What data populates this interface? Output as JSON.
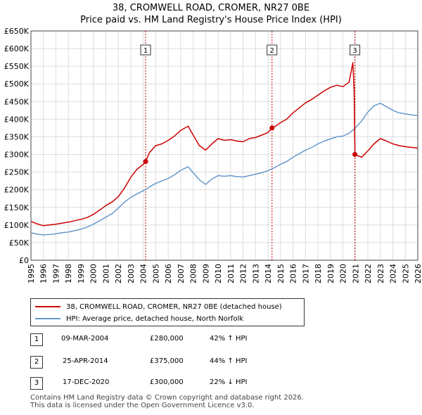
{
  "colors": {
    "property": "#cc0000",
    "hpi": "#6699cc",
    "grid": "#dddddd",
    "frame": "#444444",
    "vline": "#cc0000",
    "bg": "#ffffff"
  },
  "chart_data": {
    "type": "line",
    "title": "38, CROMWELL ROAD, CROMER, NR27 0BE",
    "subtitle": "Price paid vs. HM Land Registry's House Price Index (HPI)",
    "xlabel": "",
    "ylabel": "",
    "xlim": [
      1995,
      2026
    ],
    "ylim": [
      0,
      650000
    ],
    "x_ticks": [
      1995,
      1996,
      1997,
      1998,
      1999,
      2000,
      2001,
      2002,
      2003,
      2004,
      2005,
      2006,
      2007,
      2008,
      2009,
      2010,
      2011,
      2012,
      2013,
      2014,
      2015,
      2016,
      2017,
      2018,
      2019,
      2020,
      2021,
      2022,
      2023,
      2024,
      2025,
      2026
    ],
    "y_ticks": [
      0,
      50000,
      100000,
      150000,
      200000,
      250000,
      300000,
      350000,
      400000,
      450000,
      500000,
      550000,
      600000,
      650000
    ],
    "y_tick_labels": [
      "£0",
      "£50K",
      "£100K",
      "£150K",
      "£200K",
      "£250K",
      "£300K",
      "£350K",
      "£400K",
      "£450K",
      "£500K",
      "£550K",
      "£600K",
      "£650K"
    ],
    "grid": true,
    "series": [
      {
        "name": "38, CROMWELL ROAD, CROMER, NR27 0BE (detached house)",
        "color": "#cc0000",
        "points": [
          [
            1995.0,
            110000
          ],
          [
            1995.5,
            103000
          ],
          [
            1996.0,
            98000
          ],
          [
            1996.5,
            100000
          ],
          [
            1997.0,
            102000
          ],
          [
            1997.5,
            105000
          ],
          [
            1998.0,
            108000
          ],
          [
            1998.5,
            112000
          ],
          [
            1999.0,
            116000
          ],
          [
            1999.5,
            121000
          ],
          [
            2000.0,
            130000
          ],
          [
            2000.5,
            142000
          ],
          [
            2001.0,
            155000
          ],
          [
            2001.5,
            165000
          ],
          [
            2002.0,
            180000
          ],
          [
            2002.5,
            205000
          ],
          [
            2003.0,
            235000
          ],
          [
            2003.5,
            258000
          ],
          [
            2004.0,
            272000
          ],
          [
            2004.19,
            280000
          ],
          [
            2004.5,
            305000
          ],
          [
            2005.0,
            325000
          ],
          [
            2005.5,
            330000
          ],
          [
            2006.0,
            340000
          ],
          [
            2006.5,
            352000
          ],
          [
            2007.0,
            368000
          ],
          [
            2007.6,
            380000
          ],
          [
            2008.0,
            355000
          ],
          [
            2008.5,
            325000
          ],
          [
            2009.0,
            312000
          ],
          [
            2009.5,
            330000
          ],
          [
            2010.0,
            345000
          ],
          [
            2010.5,
            340000
          ],
          [
            2011.0,
            342000
          ],
          [
            2011.5,
            338000
          ],
          [
            2012.0,
            336000
          ],
          [
            2012.5,
            345000
          ],
          [
            2013.0,
            348000
          ],
          [
            2013.5,
            355000
          ],
          [
            2014.0,
            362000
          ],
          [
            2014.32,
            375000
          ],
          [
            2014.6,
            380000
          ],
          [
            2015.0,
            390000
          ],
          [
            2015.5,
            400000
          ],
          [
            2016.0,
            418000
          ],
          [
            2016.5,
            432000
          ],
          [
            2017.0,
            446000
          ],
          [
            2017.5,
            456000
          ],
          [
            2018.0,
            468000
          ],
          [
            2018.5,
            480000
          ],
          [
            2019.0,
            490000
          ],
          [
            2019.5,
            496000
          ],
          [
            2020.0,
            492000
          ],
          [
            2020.5,
            505000
          ],
          [
            2020.8,
            560000
          ],
          [
            2020.9,
            480000
          ],
          [
            2020.96,
            300000
          ],
          [
            2021.2,
            296000
          ],
          [
            2021.5,
            292000
          ],
          [
            2022.0,
            310000
          ],
          [
            2022.5,
            330000
          ],
          [
            2023.0,
            345000
          ],
          [
            2023.5,
            338000
          ],
          [
            2024.0,
            330000
          ],
          [
            2024.5,
            325000
          ],
          [
            2025.0,
            322000
          ],
          [
            2025.5,
            320000
          ],
          [
            2026.0,
            318000
          ]
        ]
      },
      {
        "name": "HPI: Average price, detached house, North Norfolk",
        "color": "#6699cc",
        "points": [
          [
            1995.0,
            78000
          ],
          [
            1995.5,
            74000
          ],
          [
            1996.0,
            72000
          ],
          [
            1996.5,
            73000
          ],
          [
            1997.0,
            75000
          ],
          [
            1997.5,
            78000
          ],
          [
            1998.0,
            80000
          ],
          [
            1998.5,
            84000
          ],
          [
            1999.0,
            88000
          ],
          [
            1999.5,
            94000
          ],
          [
            2000.0,
            102000
          ],
          [
            2000.5,
            112000
          ],
          [
            2001.0,
            122000
          ],
          [
            2001.5,
            132000
          ],
          [
            2002.0,
            148000
          ],
          [
            2002.5,
            165000
          ],
          [
            2003.0,
            178000
          ],
          [
            2003.5,
            188000
          ],
          [
            2004.0,
            197000
          ],
          [
            2004.5,
            208000
          ],
          [
            2005.0,
            218000
          ],
          [
            2005.5,
            225000
          ],
          [
            2006.0,
            232000
          ],
          [
            2006.5,
            242000
          ],
          [
            2007.0,
            255000
          ],
          [
            2007.6,
            265000
          ],
          [
            2008.0,
            248000
          ],
          [
            2008.5,
            228000
          ],
          [
            2009.0,
            215000
          ],
          [
            2009.5,
            230000
          ],
          [
            2010.0,
            240000
          ],
          [
            2010.5,
            238000
          ],
          [
            2011.0,
            240000
          ],
          [
            2011.5,
            237000
          ],
          [
            2012.0,
            236000
          ],
          [
            2012.5,
            240000
          ],
          [
            2013.0,
            244000
          ],
          [
            2013.5,
            248000
          ],
          [
            2014.0,
            254000
          ],
          [
            2014.5,
            262000
          ],
          [
            2015.0,
            272000
          ],
          [
            2015.5,
            280000
          ],
          [
            2016.0,
            292000
          ],
          [
            2016.5,
            302000
          ],
          [
            2017.0,
            312000
          ],
          [
            2017.5,
            320000
          ],
          [
            2018.0,
            330000
          ],
          [
            2018.5,
            338000
          ],
          [
            2019.0,
            344000
          ],
          [
            2019.5,
            350000
          ],
          [
            2020.0,
            352000
          ],
          [
            2020.5,
            360000
          ],
          [
            2021.0,
            375000
          ],
          [
            2021.5,
            395000
          ],
          [
            2022.0,
            420000
          ],
          [
            2022.5,
            438000
          ],
          [
            2023.0,
            445000
          ],
          [
            2023.5,
            435000
          ],
          [
            2024.0,
            425000
          ],
          [
            2024.5,
            418000
          ],
          [
            2025.0,
            415000
          ],
          [
            2025.5,
            412000
          ],
          [
            2026.0,
            410000
          ]
        ]
      }
    ],
    "sales": [
      {
        "id": "1",
        "x": 2004.19,
        "price": 280000,
        "date": "09-MAR-2004",
        "price_label": "£280,000",
        "hpi_label": "42% ↑ HPI"
      },
      {
        "id": "2",
        "x": 2014.32,
        "price": 375000,
        "date": "25-APR-2014",
        "price_label": "£375,000",
        "hpi_label": "44% ↑ HPI"
      },
      {
        "id": "3",
        "x": 2020.96,
        "price": 300000,
        "date": "17-DEC-2020",
        "price_label": "£300,000",
        "hpi_label": "22% ↓ HPI"
      }
    ]
  },
  "legend": {
    "property": "38, CROMWELL ROAD, CROMER, NR27 0BE (detached house)",
    "hpi": "HPI: Average price, detached house, North Norfolk"
  },
  "footer": {
    "line1": "Contains HM Land Registry data © Crown copyright and database right 2026.",
    "line2": "This data is licensed under the Open Government Licence v3.0."
  }
}
